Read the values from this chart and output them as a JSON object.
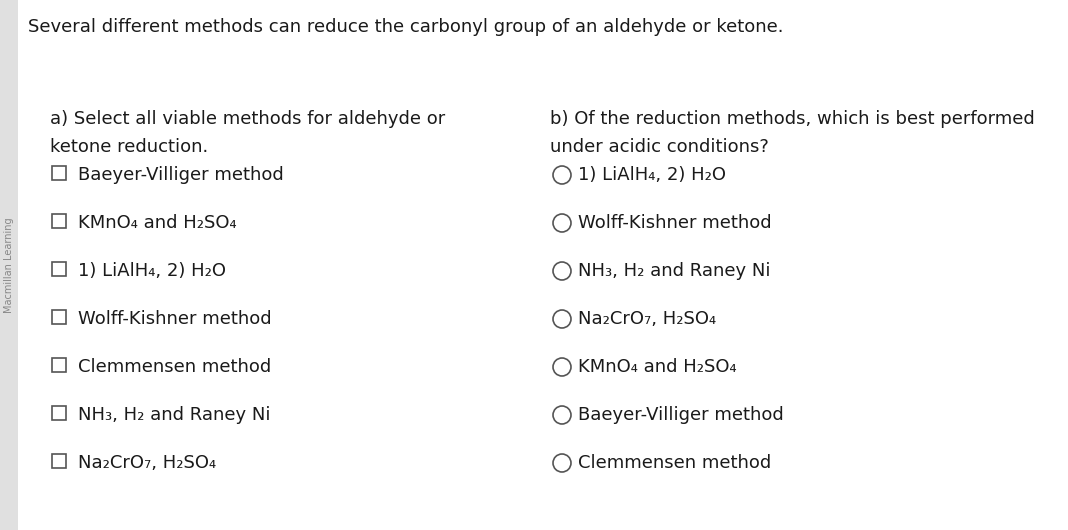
{
  "title": "Several different methods can reduce the carbonyl group of an aldehyde or ketone.",
  "background_color": "#f0f0f0",
  "content_bg": "#ffffff",
  "text_color": "#1a1a1a",
  "sidebar_color": "#cccccc",
  "section_a_header_line1": "a) Select all viable methods for aldehyde or",
  "section_a_header_line2": "ketone reduction.",
  "section_a_items": [
    "Baeyer-Villiger method",
    "KMnO₄ and H₂SO₄",
    "1) LiAlH₄, 2) H₂O",
    "Wolff-Kishner method",
    "Clemmensen method",
    "NH₃, H₂ and Raney Ni",
    "Na₂CrO₇, H₂SO₄"
  ],
  "section_b_header_line1": "b) Of the reduction methods, which is best performed",
  "section_b_header_line2": "under acidic conditions?",
  "section_b_items": [
    "1) LiAlH₄, 2) H₂O",
    "Wolff-Kishner method",
    "NH₃, H₂ and Raney Ni",
    "Na₂CrO₇, H₂SO₄",
    "KMnO₄ and H₂SO₄",
    "Baeyer-Villiger method",
    "Clemmensen method"
  ],
  "sidebar_text": "Macmillan Learning",
  "item_fontsize": 13,
  "header_fontsize": 13,
  "title_fontsize": 13
}
